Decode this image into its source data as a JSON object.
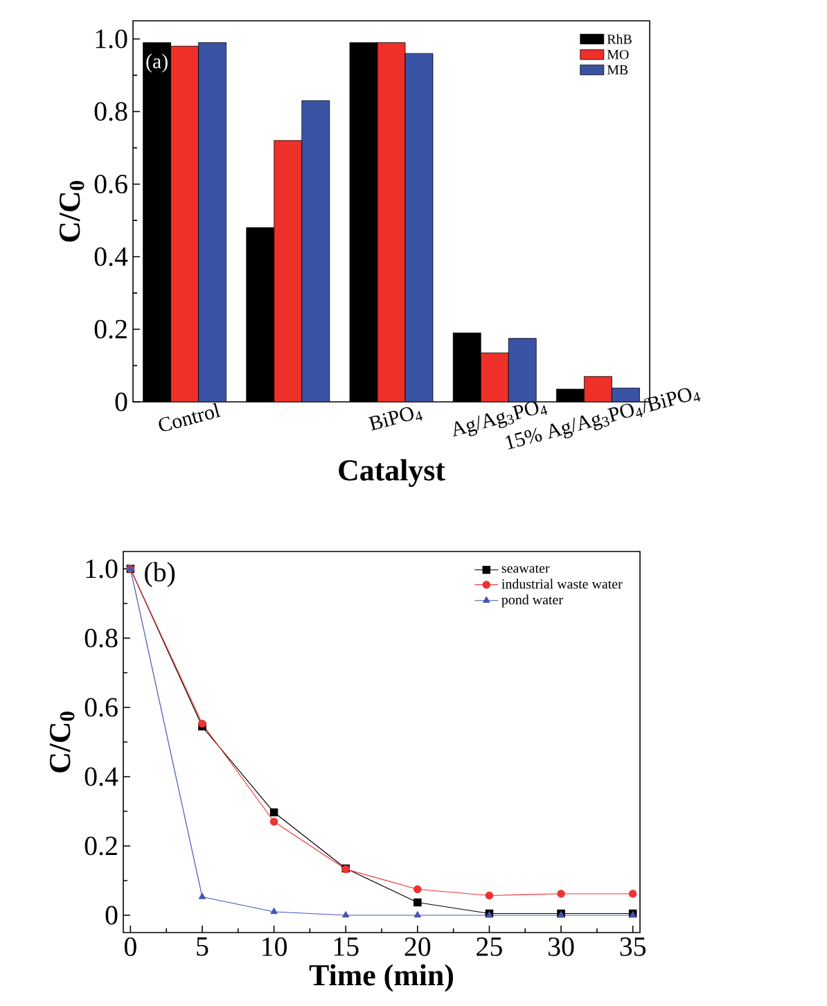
{
  "chart_data": [
    {
      "type": "bar",
      "ylabel": "C/C$_{0}$",
      "xlabel": "Catalyst",
      "categories": [
        "Control",
        null,
        "BiPO$_{4}$",
        "Ag/Ag$_{3}$PO$_{4}$",
        "15% Ag/Ag$_{3}$PO$_{4}$/BiPO$_{4}$"
      ],
      "series": [
        {
          "name": "RhB",
          "color": "#000000",
          "values": [
            0.99,
            0.48,
            0.99,
            0.19,
            0.035
          ]
        },
        {
          "name": "MO",
          "color": "#ee3029",
          "values": [
            0.98,
            0.72,
            0.99,
            0.135,
            0.07
          ]
        },
        {
          "name": "MB",
          "color": "#3a53a4",
          "values": [
            0.99,
            0.83,
            0.96,
            0.175,
            0.038
          ]
        }
      ],
      "ylim": [
        0,
        1.05
      ],
      "yticks": [
        0,
        0.2,
        0.4,
        0.6,
        0.8,
        {
          "value": 1,
          "label": "1.0"
        }
      ],
      "legend": "top right",
      "annotations": [
        "(a)"
      ]
    },
    {
      "type": "line",
      "ylabel": "C/C$_{0}$",
      "xlabel": "Time (min)",
      "x": [
        0,
        5,
        10,
        15,
        20,
        25,
        30,
        35
      ],
      "series": [
        {
          "name": "seawater",
          "color": "#000000",
          "marker": "square",
          "values": [
            1,
            0.545,
            0.297,
            0.135,
            0.037,
            0.005,
            0.005,
            0.005
          ]
        },
        {
          "name": "industrial waste water",
          "color": "#ee3333",
          "marker": "circle",
          "values": [
            1,
            0.553,
            0.27,
            0.133,
            0.075,
            0.057,
            0.062,
            0.062
          ]
        },
        {
          "name": "pond water",
          "color": "#4356b0",
          "marker": "triangle",
          "values": [
            1,
            0.053,
            0.01,
            0,
            0,
            0,
            0,
            0
          ]
        }
      ],
      "xlim": [
        -0.5,
        35.5
      ],
      "xticks": [
        0,
        5,
        10,
        15,
        20,
        25,
        30,
        35
      ],
      "ylim": [
        -0.05,
        1.05
      ],
      "yticks": [
        0,
        0.2,
        0.4,
        0.6,
        0.8,
        {
          "value": 1,
          "label": "1.0"
        }
      ],
      "legend": "top right",
      "annotations": [
        "(b)"
      ]
    }
  ]
}
